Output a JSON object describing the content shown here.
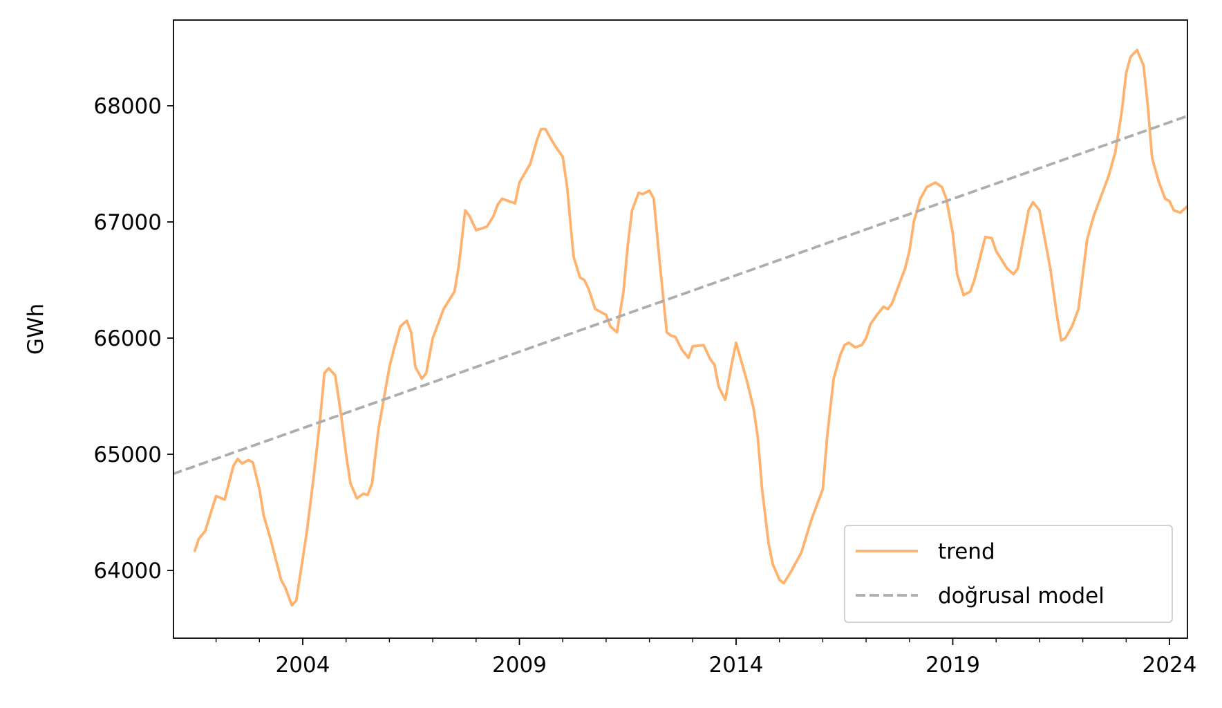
{
  "chart_data": {
    "type": "line",
    "title": "",
    "xlabel": "",
    "ylabel": "GWh",
    "xlim": [
      2001.0,
      2024.4
    ],
    "ylim": [
      63430,
      68730
    ],
    "xticks_major": [
      2004,
      2009,
      2014,
      2019,
      2024
    ],
    "xticks_minor_step": 1,
    "yticks": [
      64000,
      65000,
      66000,
      67000,
      68000
    ],
    "xtick_labels": [
      "2004",
      "2009",
      "2014",
      "2019",
      "2024"
    ],
    "ytick_labels": [
      "64000",
      "65000",
      "66000",
      "67000",
      "68000"
    ],
    "grid": false,
    "legend_position": "bottom-right",
    "legend": [
      "trend",
      "doğrusal model"
    ],
    "series": [
      {
        "name": "trend",
        "color": "#ffb26e",
        "style": "solid",
        "points": [
          [
            2001.5,
            64160
          ],
          [
            2001.6,
            64270
          ],
          [
            2001.75,
            64340
          ],
          [
            2001.9,
            64520
          ],
          [
            2002.0,
            64640
          ],
          [
            2002.2,
            64610
          ],
          [
            2002.4,
            64900
          ],
          [
            2002.5,
            64960
          ],
          [
            2002.6,
            64920
          ],
          [
            2002.75,
            64950
          ],
          [
            2002.85,
            64930
          ],
          [
            2003.0,
            64700
          ],
          [
            2003.1,
            64470
          ],
          [
            2003.25,
            64280
          ],
          [
            2003.5,
            63920
          ],
          [
            2003.6,
            63850
          ],
          [
            2003.75,
            63700
          ],
          [
            2003.85,
            63740
          ],
          [
            2004.0,
            64100
          ],
          [
            2004.1,
            64350
          ],
          [
            2004.25,
            64800
          ],
          [
            2004.4,
            65300
          ],
          [
            2004.5,
            65700
          ],
          [
            2004.6,
            65740
          ],
          [
            2004.75,
            65680
          ],
          [
            2004.9,
            65300
          ],
          [
            2005.0,
            65000
          ],
          [
            2005.1,
            64750
          ],
          [
            2005.25,
            64620
          ],
          [
            2005.4,
            64660
          ],
          [
            2005.5,
            64650
          ],
          [
            2005.6,
            64750
          ],
          [
            2005.75,
            65220
          ],
          [
            2006.0,
            65750
          ],
          [
            2006.1,
            65900
          ],
          [
            2006.25,
            66100
          ],
          [
            2006.4,
            66150
          ],
          [
            2006.5,
            66050
          ],
          [
            2006.6,
            65750
          ],
          [
            2006.75,
            65650
          ],
          [
            2006.85,
            65700
          ],
          [
            2007.0,
            66000
          ],
          [
            2007.25,
            66250
          ],
          [
            2007.5,
            66400
          ],
          [
            2007.6,
            66620
          ],
          [
            2007.75,
            67100
          ],
          [
            2007.85,
            67050
          ],
          [
            2008.0,
            66930
          ],
          [
            2008.1,
            66940
          ],
          [
            2008.25,
            66960
          ],
          [
            2008.4,
            67050
          ],
          [
            2008.5,
            67150
          ],
          [
            2008.6,
            67200
          ],
          [
            2008.75,
            67180
          ],
          [
            2008.9,
            67160
          ],
          [
            2009.0,
            67340
          ],
          [
            2009.25,
            67500
          ],
          [
            2009.4,
            67700
          ],
          [
            2009.5,
            67800
          ],
          [
            2009.6,
            67800
          ],
          [
            2009.75,
            67700
          ],
          [
            2009.85,
            67640
          ],
          [
            2010.0,
            67560
          ],
          [
            2010.1,
            67300
          ],
          [
            2010.25,
            66700
          ],
          [
            2010.4,
            66520
          ],
          [
            2010.5,
            66500
          ],
          [
            2010.6,
            66420
          ],
          [
            2010.75,
            66250
          ],
          [
            2010.9,
            66220
          ],
          [
            2011.0,
            66200
          ],
          [
            2011.1,
            66100
          ],
          [
            2011.25,
            66050
          ],
          [
            2011.4,
            66400
          ],
          [
            2011.5,
            66800
          ],
          [
            2011.6,
            67100
          ],
          [
            2011.75,
            67250
          ],
          [
            2011.85,
            67240
          ],
          [
            2012.0,
            67270
          ],
          [
            2012.1,
            67200
          ],
          [
            2012.25,
            66600
          ],
          [
            2012.4,
            66050
          ],
          [
            2012.5,
            66020
          ],
          [
            2012.6,
            66010
          ],
          [
            2012.75,
            65900
          ],
          [
            2012.9,
            65830
          ],
          [
            2013.0,
            65930
          ],
          [
            2013.25,
            65940
          ],
          [
            2013.4,
            65820
          ],
          [
            2013.5,
            65770
          ],
          [
            2013.6,
            65580
          ],
          [
            2013.75,
            65470
          ],
          [
            2013.9,
            65780
          ],
          [
            2014.0,
            65960
          ],
          [
            2014.25,
            65630
          ],
          [
            2014.4,
            65400
          ],
          [
            2014.5,
            65150
          ],
          [
            2014.6,
            64700
          ],
          [
            2014.75,
            64230
          ],
          [
            2014.85,
            64050
          ],
          [
            2015.0,
            63920
          ],
          [
            2015.1,
            63890
          ],
          [
            2015.25,
            63980
          ],
          [
            2015.5,
            64150
          ],
          [
            2015.75,
            64450
          ],
          [
            2016.0,
            64700
          ],
          [
            2016.1,
            65150
          ],
          [
            2016.25,
            65650
          ],
          [
            2016.4,
            65850
          ],
          [
            2016.5,
            65940
          ],
          [
            2016.6,
            65960
          ],
          [
            2016.75,
            65920
          ],
          [
            2016.9,
            65940
          ],
          [
            2017.0,
            66000
          ],
          [
            2017.1,
            66120
          ],
          [
            2017.25,
            66200
          ],
          [
            2017.4,
            66270
          ],
          [
            2017.5,
            66250
          ],
          [
            2017.6,
            66300
          ],
          [
            2017.75,
            66450
          ],
          [
            2017.9,
            66600
          ],
          [
            2018.0,
            66750
          ],
          [
            2018.1,
            67000
          ],
          [
            2018.25,
            67200
          ],
          [
            2018.4,
            67300
          ],
          [
            2018.5,
            67320
          ],
          [
            2018.6,
            67340
          ],
          [
            2018.75,
            67300
          ],
          [
            2018.85,
            67200
          ],
          [
            2019.0,
            66900
          ],
          [
            2019.1,
            66550
          ],
          [
            2019.25,
            66370
          ],
          [
            2019.4,
            66400
          ],
          [
            2019.5,
            66500
          ],
          [
            2019.75,
            66870
          ],
          [
            2019.9,
            66860
          ],
          [
            2020.0,
            66750
          ],
          [
            2020.25,
            66600
          ],
          [
            2020.4,
            66550
          ],
          [
            2020.5,
            66600
          ],
          [
            2020.6,
            66800
          ],
          [
            2020.75,
            67100
          ],
          [
            2020.85,
            67170
          ],
          [
            2021.0,
            67100
          ],
          [
            2021.1,
            66900
          ],
          [
            2021.25,
            66600
          ],
          [
            2021.4,
            66200
          ],
          [
            2021.5,
            65980
          ],
          [
            2021.6,
            66000
          ],
          [
            2021.75,
            66100
          ],
          [
            2021.9,
            66250
          ],
          [
            2022.0,
            66550
          ],
          [
            2022.1,
            66850
          ],
          [
            2022.25,
            67050
          ],
          [
            2022.4,
            67200
          ],
          [
            2022.5,
            67300
          ],
          [
            2022.6,
            67400
          ],
          [
            2022.75,
            67600
          ],
          [
            2022.9,
            67950
          ],
          [
            2023.0,
            68280
          ],
          [
            2023.1,
            68420
          ],
          [
            2023.25,
            68480
          ],
          [
            2023.4,
            68350
          ],
          [
            2023.5,
            68000
          ],
          [
            2023.6,
            67550
          ],
          [
            2023.75,
            67350
          ],
          [
            2023.9,
            67200
          ],
          [
            2024.0,
            67180
          ],
          [
            2024.1,
            67100
          ],
          [
            2024.25,
            67080
          ],
          [
            2024.4,
            67130
          ],
          [
            2024.5,
            67070
          ]
        ]
      },
      {
        "name": "doğrusal model",
        "color": "#adadad",
        "style": "dashed",
        "points": [
          [
            2001.0,
            64830
          ],
          [
            2024.4,
            67910
          ]
        ]
      }
    ]
  }
}
